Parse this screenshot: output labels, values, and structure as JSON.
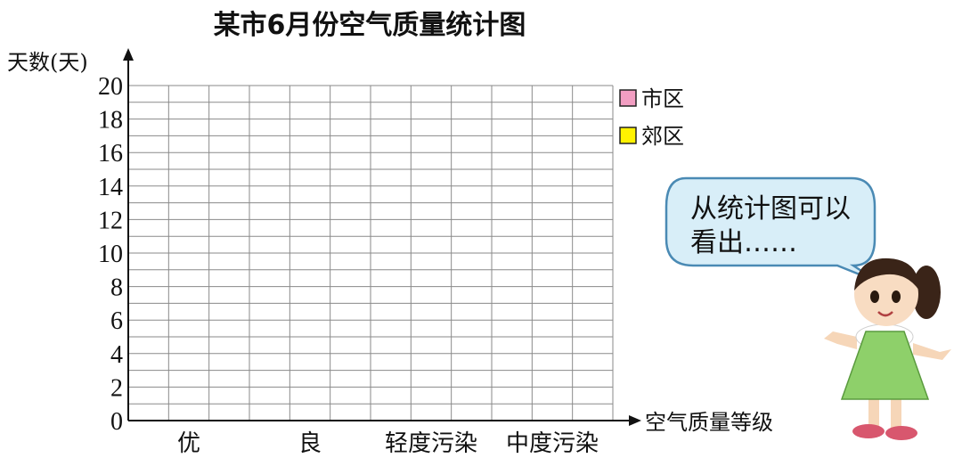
{
  "chart_data": {
    "type": "bar",
    "title": "某市6月份空气质量统计图",
    "xlabel": "空气质量等级",
    "ylabel": "天数(天)",
    "categories": [
      "优",
      "良",
      "轻度污染",
      "中度污染"
    ],
    "series": [
      {
        "name": "市区",
        "color": "#f29ec2",
        "values": [
          null,
          null,
          null,
          null
        ]
      },
      {
        "name": "郊区",
        "color": "#fff200",
        "values": [
          null,
          null,
          null,
          null
        ]
      }
    ],
    "ylim": [
      0,
      20
    ],
    "y_ticks": [
      "0",
      "2",
      "4",
      "6",
      "8",
      "10",
      "12",
      "14",
      "16",
      "18",
      "20"
    ],
    "grid": true,
    "legend_position": "top-right"
  },
  "speech_bubble": {
    "line1": "从统计图可以",
    "line2": "看出……"
  },
  "illustration": "cartoon-girl"
}
